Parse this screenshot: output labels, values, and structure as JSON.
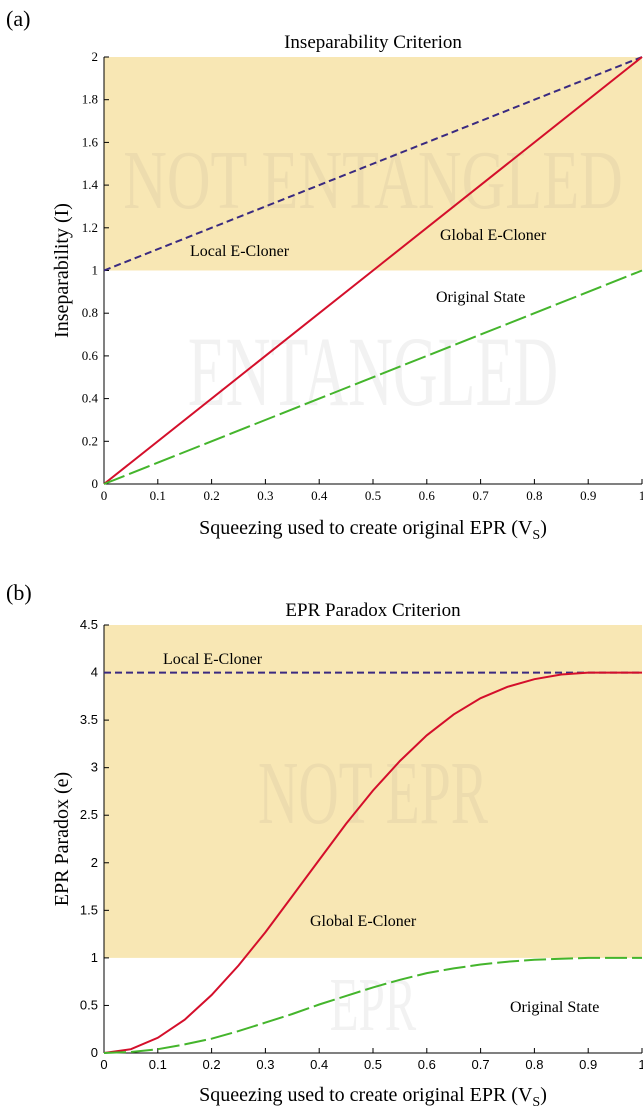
{
  "panels": [
    {
      "label": "(a)"
    },
    {
      "label": "(b)"
    }
  ],
  "colors": {
    "region": "#f8e7b4",
    "local": "#3a2a80",
    "global": "#d40f2b",
    "original": "#44b52c",
    "watermark_dark": "#eddcae",
    "watermark_light": "#f2f2f2"
  },
  "chart_data": [
    {
      "type": "line",
      "title": "Inseparability Criterion",
      "xlabel": "Squeezing used to create original EPR (V",
      "xlabel_sub": "S",
      "xlabel_end": ")",
      "ylabel": "Inseparability (I)",
      "xlim": [
        0,
        1
      ],
      "ylim": [
        0,
        2
      ],
      "xticks": [
        "0",
        "0.1",
        "0.2",
        "0.3",
        "0.4",
        "0.5",
        "0.6",
        "0.7",
        "0.8",
        "0.9",
        "1"
      ],
      "yticks": [
        "0",
        "0.2",
        "0.4",
        "0.6",
        "0.8",
        "1",
        "1.2",
        "1.4",
        "1.6",
        "1.8",
        "2"
      ],
      "shaded_region": {
        "y_from": 1,
        "y_to": 2
      },
      "region_labels": {
        "upper": "NOT ENTANGLED",
        "lower": "ENTANGLED"
      },
      "series": [
        {
          "name": "Local E-Cloner",
          "style": "dashed",
          "x": [
            0,
            1
          ],
          "y": [
            1,
            2
          ]
        },
        {
          "name": "Global E-Cloner",
          "style": "solid",
          "x": [
            0,
            1
          ],
          "y": [
            0,
            2
          ]
        },
        {
          "name": "Original State",
          "style": "longdash",
          "x": [
            0,
            1
          ],
          "y": [
            0,
            1
          ]
        }
      ]
    },
    {
      "type": "line",
      "title": "EPR Paradox Criterion",
      "xlabel": "Squeezing used to create original EPR (V",
      "xlabel_sub": "S",
      "xlabel_end": ")",
      "ylabel": "EPR Paradox (e)",
      "xlim": [
        0,
        1
      ],
      "ylim": [
        0,
        4.5
      ],
      "xticks": [
        "0",
        "0.1",
        "0.2",
        "0.3",
        "0.4",
        "0.5",
        "0.6",
        "0.7",
        "0.8",
        "0.9",
        "1"
      ],
      "yticks": [
        "0",
        "0.5",
        "1",
        "1.5",
        "2",
        "2.5",
        "3",
        "3.5",
        "4",
        "4.5"
      ],
      "shaded_region": {
        "y_from": 1,
        "y_to": 4.5
      },
      "region_labels": {
        "upper": "NOT EPR",
        "lower": "EPR"
      },
      "series": [
        {
          "name": "Local E-Cloner",
          "style": "dashed",
          "x": [
            0,
            1
          ],
          "y": [
            4,
            4
          ]
        },
        {
          "name": "Global E-Cloner",
          "style": "solid",
          "x": [
            0,
            0.05,
            0.1,
            0.15,
            0.2,
            0.25,
            0.3,
            0.35,
            0.4,
            0.45,
            0.5,
            0.55,
            0.6,
            0.65,
            0.7,
            0.75,
            0.8,
            0.85,
            0.9,
            0.95,
            1
          ],
          "y": [
            0,
            0.04,
            0.16,
            0.35,
            0.61,
            0.92,
            1.27,
            1.65,
            2.03,
            2.41,
            2.76,
            3.07,
            3.34,
            3.56,
            3.73,
            3.85,
            3.93,
            3.98,
            4.0,
            4.0,
            4.0
          ]
        },
        {
          "name": "Original State",
          "style": "longdash",
          "x": [
            0,
            0.05,
            0.1,
            0.15,
            0.2,
            0.25,
            0.3,
            0.35,
            0.4,
            0.45,
            0.5,
            0.55,
            0.6,
            0.65,
            0.7,
            0.75,
            0.8,
            0.85,
            0.9,
            0.95,
            1
          ],
          "y": [
            0,
            0.01,
            0.04,
            0.09,
            0.15,
            0.23,
            0.32,
            0.41,
            0.51,
            0.6,
            0.69,
            0.77,
            0.84,
            0.89,
            0.93,
            0.96,
            0.98,
            0.99,
            1.0,
            1.0,
            1.0
          ]
        }
      ]
    }
  ]
}
